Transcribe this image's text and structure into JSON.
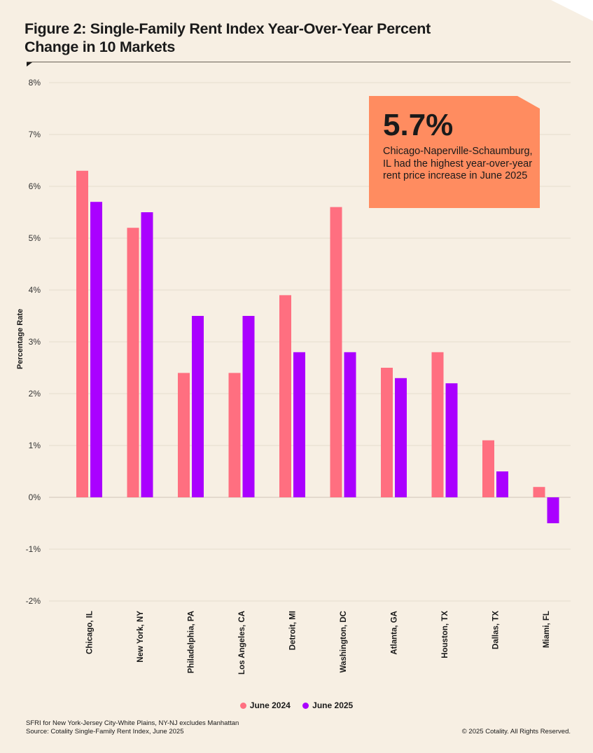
{
  "title": "Figure 2: Single-Family Rent Index Year-Over-Year Percent Change in 10 Markets",
  "callout": {
    "value": "5.7%",
    "text": "Chicago-Naperville-Schaumburg, IL had the highest year-over-year rent price increase in June 2025"
  },
  "footer": {
    "note": "SFRI for New York-Jersey City-White Plains, NY-NJ excludes Manhattan",
    "source": "Source: Cotality Single-Family Rent Index, June 2025",
    "copyright": "© 2025 Cotality. All Rights Reserved."
  },
  "chart_data": {
    "type": "bar",
    "title": "Figure 2: Single-Family Rent Index Year-Over-Year Percent Change in 10 Markets",
    "xlabel": "",
    "ylabel": "Percentage Rate",
    "ylim": [
      -2,
      8
    ],
    "yticks": [
      "-2%",
      "-1%",
      "0%",
      "1%",
      "2%",
      "3%",
      "4%",
      "5%",
      "6%",
      "7%",
      "8%"
    ],
    "grid": true,
    "legend_position": "bottom",
    "categories": [
      "Chicago, IL",
      "New York, NY",
      "Philadelphia, PA",
      "Los Angeles, CA",
      "Detroit, MI",
      "Washington, DC",
      "Atlanta, GA",
      "Houston, TX",
      "Dallas, TX",
      "Miami, FL"
    ],
    "series": [
      {
        "name": "June 2024",
        "color": "#ff6f80",
        "values": [
          6.3,
          5.2,
          2.4,
          2.4,
          3.9,
          5.6,
          2.5,
          2.8,
          1.1,
          0.2
        ]
      },
      {
        "name": "June 2025",
        "color": "#aa00ff",
        "values": [
          5.7,
          5.5,
          3.5,
          3.5,
          2.8,
          2.8,
          2.3,
          2.2,
          0.5,
          -0.5
        ]
      }
    ]
  }
}
